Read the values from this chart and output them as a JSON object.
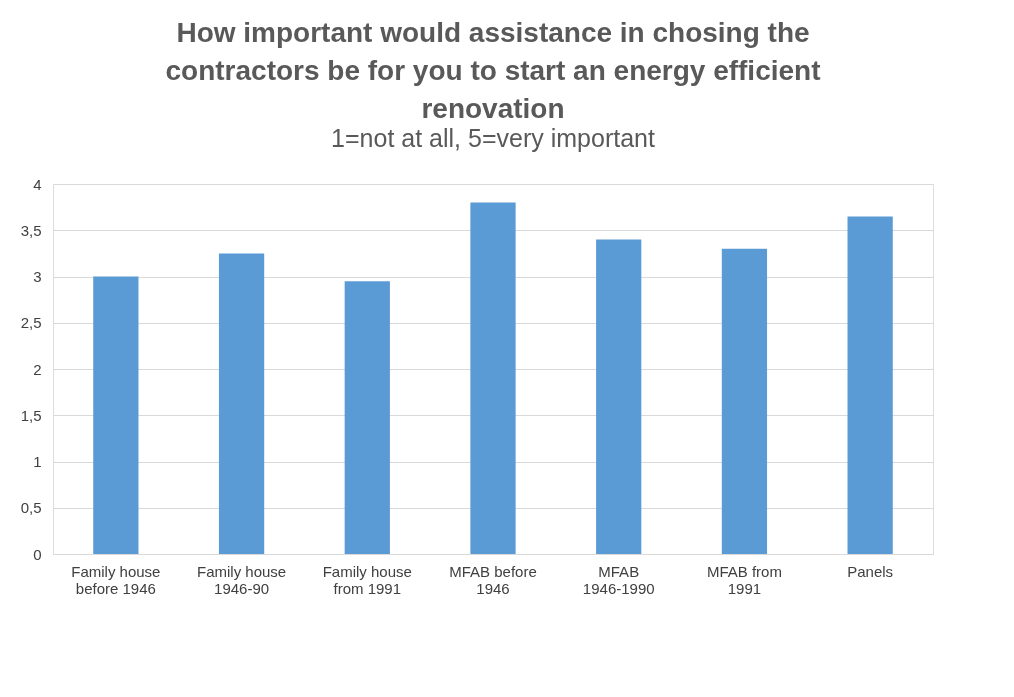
{
  "chart_data": {
    "type": "bar",
    "title": "How important would assistance in chosing the contractors be for you to start an energy efficient renovation",
    "subtitle": "1=not at all, 5=very important",
    "categories": [
      "Family house before 1946",
      "Family house 1946-90",
      "Family house from 1991",
      "MFAB before 1946",
      "MFAB 1946-1990",
      "MFAB from 1991",
      "Panels"
    ],
    "values": [
      3.0,
      3.25,
      2.95,
      3.8,
      3.4,
      3.3,
      3.65
    ],
    "color": "#5b9bd5",
    "ylim": [
      0,
      4
    ],
    "yticks": [
      0,
      {
        "value": 0.5,
        "label": "0,5"
      },
      1,
      {
        "value": 1.5,
        "label": "1,5"
      },
      2,
      {
        "value": 2.5,
        "label": "2,5"
      },
      3,
      {
        "value": 3.5,
        "label": "3,5"
      },
      4
    ],
    "grid": "y"
  }
}
